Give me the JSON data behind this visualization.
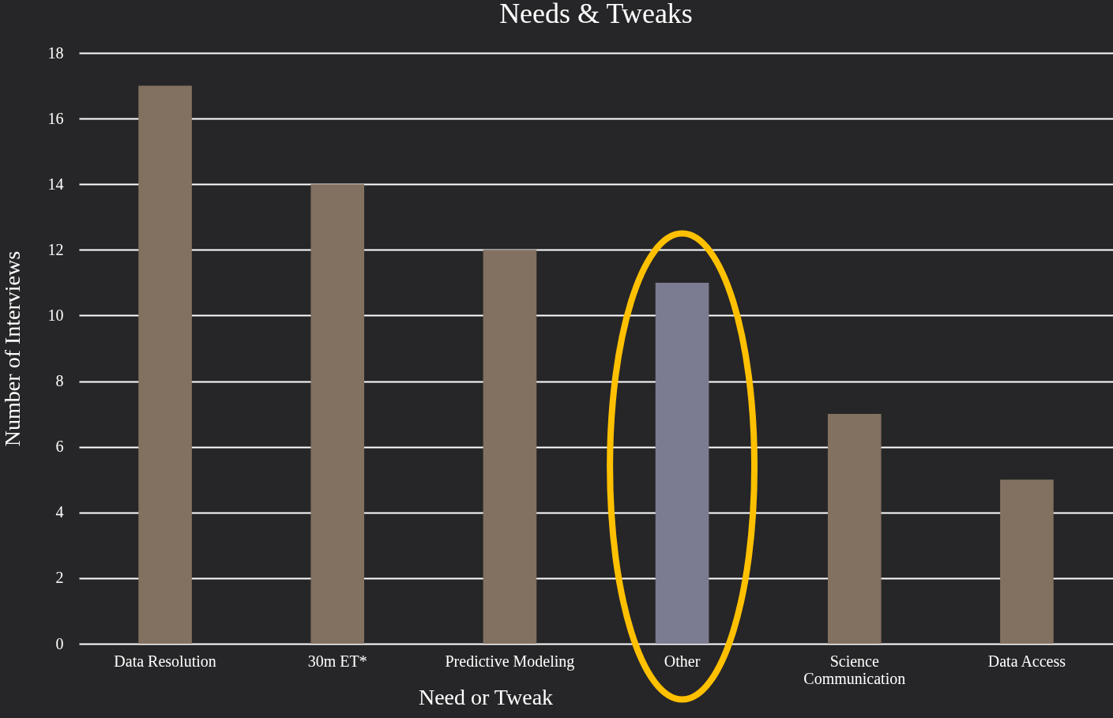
{
  "chart_data": {
    "type": "bar",
    "title": "Needs & Tweaks",
    "xlabel": "Need or Tweak",
    "ylabel": "Number of Interviews",
    "categories": [
      "Data Resolution",
      "30m ET*",
      "Predictive Modeling",
      "Other",
      "Science Communication",
      "Data Access"
    ],
    "values": [
      17,
      14,
      12,
      11,
      7,
      5
    ],
    "colors": [
      "#827061",
      "#827061",
      "#827061",
      "#7b7c92",
      "#827061",
      "#827061"
    ],
    "ylim": [
      0,
      18
    ],
    "yticks": [
      0,
      2,
      4,
      6,
      8,
      10,
      12,
      14,
      16,
      18
    ],
    "grid": "y"
  }
}
